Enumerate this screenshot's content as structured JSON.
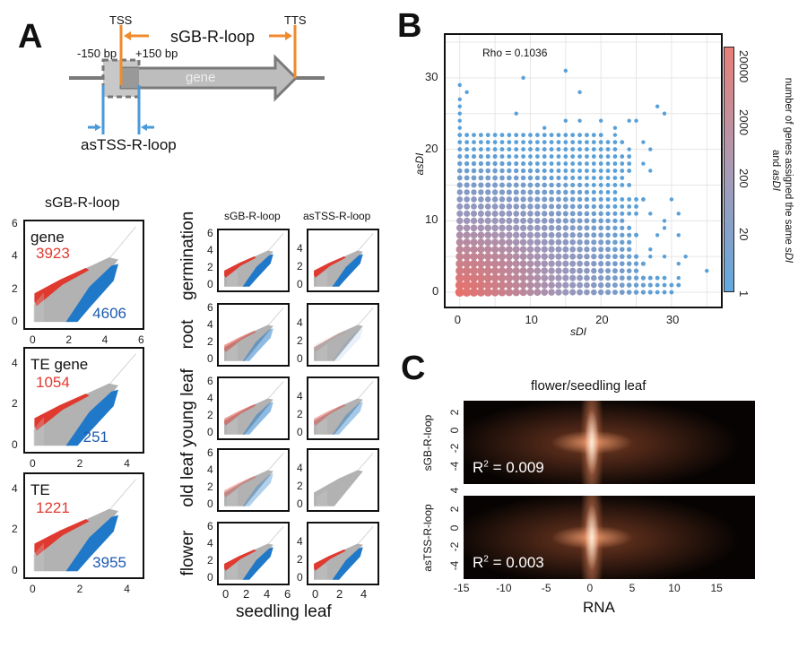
{
  "panel_labels": {
    "a": "A",
    "b": "B",
    "c": "C"
  },
  "diagram": {
    "tss": "TSS",
    "tts": "TTS",
    "sgb_label": "sGB-R-loop",
    "minus150": "-150 bp",
    "plus150": "+150 bp",
    "gene": "gene",
    "astss_label": "asTSS-R-loop",
    "colors": {
      "orange": "#f08a2c",
      "blue": "#4a9ad8",
      "gray": "#7a7a7a"
    }
  },
  "chart_data": [
    {
      "type": "scatter",
      "title": "sGB-R-loop",
      "panel": "A-left",
      "colors": {
        "up": "#e03a30",
        "down": "#1f78c8",
        "neutral": "#aaaaaa"
      },
      "plots": [
        {
          "label": "gene",
          "up_count": "3923",
          "down_count": "4606",
          "xticks": [
            "0",
            "2",
            "4",
            "6"
          ],
          "yticks": [
            "0",
            "2",
            "4",
            "6"
          ]
        },
        {
          "label": "TE gene",
          "up_count": "1054",
          "down_count": "251",
          "xticks": [
            "0",
            "2",
            "4"
          ],
          "yticks": [
            "0",
            "2",
            "4"
          ]
        },
        {
          "label": "TE",
          "up_count": "1221",
          "down_count": "3955",
          "xticks": [
            "0",
            "2",
            "4"
          ],
          "yticks": [
            "0",
            "2",
            "4"
          ]
        }
      ]
    },
    {
      "type": "scatter",
      "panel": "A-right",
      "xlabel": "seedling leaf",
      "columns": [
        "sGB-R-loop",
        "asTSS-R-loop"
      ],
      "rows": [
        "germination",
        "root",
        "young leaf",
        "old leaf",
        "flower"
      ],
      "xticks": [
        [
          "0",
          "2",
          "4",
          "6"
        ],
        [
          "0",
          "2",
          "4"
        ]
      ],
      "yticks": [
        [
          "0",
          "2",
          "4",
          "6"
        ],
        [
          "0",
          "2",
          "4"
        ]
      ],
      "differential": [
        [
          1,
          1
        ],
        [
          0.5,
          0.1
        ],
        [
          0.5,
          0.4
        ],
        [
          0.35,
          0
        ],
        [
          1,
          1
        ]
      ]
    },
    {
      "type": "scatter",
      "panel": "B",
      "xlabel": "sDI",
      "ylabel": "asDI",
      "annotation": "Rho = 0.1036",
      "xlim": [
        -2,
        37
      ],
      "ylim": [
        -2,
        36
      ],
      "xticks": [
        "0",
        "10",
        "20",
        "30"
      ],
      "yticks": [
        "0",
        "10",
        "20",
        "30"
      ],
      "grid": true,
      "colorbar": {
        "label_1": "number of genes assigned the same ",
        "label_1_italic": "sDI",
        "label_2": "and ",
        "label_2_italic": "asDI",
        "ticks": [
          "20000",
          "2000",
          "200",
          "20",
          "1"
        ],
        "scale": "log",
        "color_high": "#e87f78",
        "color_low": "#62a8de"
      },
      "rows": [
        {
          "asDI": 0,
          "sDI": [
            0,
            30
          ],
          "extra": []
        },
        {
          "asDI": 1,
          "sDI": [
            0,
            31
          ],
          "extra": []
        },
        {
          "asDI": 2,
          "sDI": [
            0,
            29
          ],
          "extra": [
            31
          ]
        },
        {
          "asDI": 3,
          "sDI": [
            0,
            25
          ],
          "extra": [
            35
          ]
        },
        {
          "asDI": 4,
          "sDI": [
            0,
            26
          ],
          "extra": [
            31
          ]
        },
        {
          "asDI": 5,
          "sDI": [
            0,
            25
          ],
          "extra": [
            27,
            29,
            32
          ]
        },
        {
          "asDI": 6,
          "sDI": [
            0,
            24
          ],
          "extra": [
            27
          ]
        },
        {
          "asDI": 7,
          "sDI": [
            0,
            24
          ],
          "extra": []
        },
        {
          "asDI": 8,
          "sDI": [
            0,
            25
          ],
          "extra": [
            28,
            31
          ]
        },
        {
          "asDI": 9,
          "sDI": [
            0,
            24
          ],
          "extra": [
            29
          ]
        },
        {
          "asDI": 10,
          "sDI": [
            0,
            23
          ],
          "extra": [
            29
          ]
        },
        {
          "asDI": 11,
          "sDI": [
            0,
            25
          ],
          "extra": [
            27,
            31
          ]
        },
        {
          "asDI": 12,
          "sDI": [
            0,
            25
          ],
          "extra": []
        },
        {
          "asDI": 13,
          "sDI": [
            0,
            26
          ],
          "extra": [
            30
          ]
        },
        {
          "asDI": 14,
          "sDI": [
            0,
            22
          ],
          "extra": []
        },
        {
          "asDI": 15,
          "sDI": [
            0,
            24
          ],
          "extra": []
        },
        {
          "asDI": 16,
          "sDI": [
            0,
            23
          ],
          "extra": []
        },
        {
          "asDI": 17,
          "sDI": [
            0,
            24
          ],
          "extra": [
            27
          ]
        },
        {
          "asDI": 18,
          "sDI": [
            0,
            24
          ],
          "extra": [
            26
          ]
        },
        {
          "asDI": 19,
          "sDI": [
            0,
            24
          ],
          "extra": []
        },
        {
          "asDI": 20,
          "sDI": [
            0,
            22
          ],
          "extra": [
            24,
            27
          ]
        },
        {
          "asDI": 21,
          "sDI": [
            0,
            23
          ],
          "extra": [
            26
          ]
        },
        {
          "asDI": 22,
          "sDI": [
            0,
            20
          ],
          "extra": [
            22
          ]
        },
        {
          "asDI": 23,
          "sDI": [
            0,
            0
          ],
          "extra": [
            12,
            22
          ]
        },
        {
          "asDI": 24,
          "sDI": [
            0,
            0
          ],
          "extra": [
            15,
            17,
            20,
            24,
            25
          ]
        },
        {
          "asDI": 25,
          "sDI": [
            0,
            0
          ],
          "extra": [
            8,
            29
          ]
        },
        {
          "asDI": 26,
          "sDI": [
            0,
            0
          ],
          "extra": [
            28
          ]
        },
        {
          "asDI": 27,
          "sDI": [
            0,
            0
          ],
          "extra": []
        },
        {
          "asDI": 28,
          "sDI": [
            1,
            1
          ],
          "extra": [
            17
          ]
        },
        {
          "asDI": 29,
          "sDI": [
            0,
            0
          ],
          "extra": []
        },
        {
          "asDI": 30,
          "sDI": [
            9,
            9
          ],
          "extra": []
        },
        {
          "asDI": 31,
          "sDI": [
            15,
            15
          ],
          "extra": []
        }
      ]
    },
    {
      "type": "heatmap",
      "panel": "C",
      "title": "flower/seedling leaf",
      "xlabel": "RNA",
      "xlim": [
        -15,
        19
      ],
      "xticks": [
        "-15",
        "-10",
        "-5",
        "0",
        "5",
        "10",
        "15"
      ],
      "colormap": "black-copper",
      "plots": [
        {
          "ylabel": "sGB-R-loop",
          "yticks": [
            "-4",
            "-2",
            "0",
            "2"
          ],
          "r2_prefix": "R",
          "r2_sup": "2",
          "r2_value": " = 0.009"
        },
        {
          "ylabel": "asTSS-R-loop",
          "yticks": [
            "-4",
            "-2",
            "0",
            "2",
            "4"
          ],
          "r2_prefix": "R",
          "r2_sup": "2",
          "r2_value": " = 0.003"
        }
      ]
    }
  ]
}
